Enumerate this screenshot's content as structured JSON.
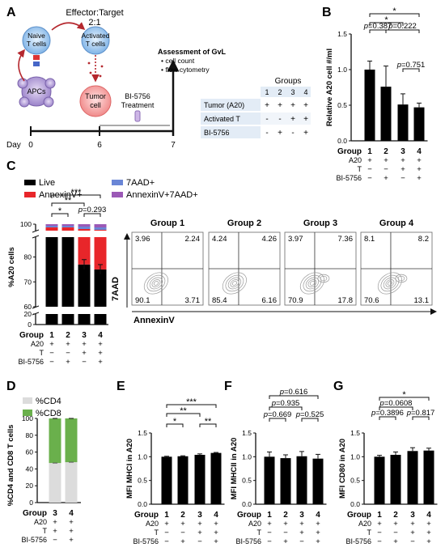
{
  "panel_labels": {
    "A": "A",
    "B": "B",
    "C": "C",
    "D": "D",
    "E": "E",
    "F": "F",
    "G": "G"
  },
  "panel_a": {
    "title": "Effector:Target",
    "ratio": "2:1",
    "naive": [
      "Naive",
      "T cells"
    ],
    "activated": [
      "Activated",
      "T cells"
    ],
    "apcs": "APCs",
    "tumor": [
      "Tumor",
      "cell"
    ],
    "treatment": [
      "BI-5756",
      "Treatment"
    ],
    "assess_title": "Assessment of GvL",
    "assess_items": [
      "• cell count",
      "• flow cytometry"
    ],
    "timeline_label": "Day",
    "timeline_ticks": [
      "0",
      "6",
      "7"
    ],
    "groups_table": {
      "header": "Groups",
      "columns": [
        "1",
        "2",
        "3",
        "4"
      ],
      "rows": [
        {
          "label": "Tumor (A20)",
          "cells": [
            "+",
            "+",
            "+",
            "+"
          ]
        },
        {
          "label": "Activated T",
          "cells": [
            "-",
            "-",
            "+",
            "+"
          ]
        },
        {
          "label": "BI-5756",
          "cells": [
            "-",
            "+",
            "-",
            "+"
          ]
        }
      ]
    }
  },
  "design_rows": {
    "group_label": "Group",
    "row_labels": [
      "A20",
      "T",
      "BI-5756"
    ],
    "groups4": [
      "1",
      "2",
      "3",
      "4"
    ],
    "A20": [
      "+",
      "+",
      "+",
      "+"
    ],
    "T": [
      "−",
      "−",
      "+",
      "+"
    ],
    "BI": [
      "−",
      "+",
      "−",
      "+"
    ],
    "groups2": [
      "3",
      "4"
    ],
    "A20_2": [
      "+",
      "+"
    ],
    "T_2": [
      "+",
      "+"
    ],
    "BI_2": [
      "−",
      "+"
    ]
  },
  "chart_data": [
    {
      "id": "B",
      "type": "bar",
      "ylabel": "Relative A20 cell #/ml",
      "categories": [
        "1",
        "2",
        "3",
        "4"
      ],
      "values": [
        1.0,
        0.76,
        0.51,
        0.47
      ],
      "errors": [
        0.12,
        0.29,
        0.15,
        0.06
      ],
      "ylim": [
        0,
        1.5
      ],
      "yticks": [
        "0.0",
        "0.5",
        "1.0",
        "1.5"
      ],
      "sig_labels": [
        "*",
        "*",
        "p=0.387",
        "p=0.222",
        "p=0.751"
      ]
    },
    {
      "id": "C",
      "type": "bar",
      "stacked": true,
      "ylabel": "%A20 cells",
      "categories": [
        "1",
        "2",
        "3",
        "4"
      ],
      "legend": [
        "Live",
        "AnnexinV+",
        "7AAD+",
        "AnnexinV+7AAD+"
      ],
      "colors": {
        "live": "#000000",
        "annexin": "#e8262a",
        "aad": "#6a86d6",
        "double": "#9b59b6"
      },
      "live": [
        96,
        96,
        77,
        75
      ],
      "annexin": [
        2,
        2,
        20,
        21.5
      ],
      "aad": [
        1,
        1,
        1.5,
        1.5
      ],
      "double": [
        1,
        1,
        1.5,
        2
      ],
      "broken_axis": true,
      "yticks": [
        "0",
        "20",
        "60",
        "70",
        "80",
        "100"
      ],
      "sig_labels": [
        "***",
        "**",
        "*",
        "p=0.293"
      ]
    },
    {
      "id": "C_flow",
      "type": "scatter",
      "xlabel": "AnnexinV",
      "ylabel": "7AAD",
      "panels": [
        {
          "title": "Group 1",
          "q": [
            "3.96",
            "2.24",
            "90.1",
            "3.71"
          ]
        },
        {
          "title": "Group 2",
          "q": [
            "4.24",
            "4.26",
            "85.4",
            "6.16"
          ]
        },
        {
          "title": "Group 3",
          "q": [
            "3.97",
            "7.36",
            "70.9",
            "17.8"
          ]
        },
        {
          "title": "Group 4",
          "q": [
            "8.1",
            "8.2",
            "70.6",
            "13.1"
          ]
        }
      ]
    },
    {
      "id": "D",
      "type": "bar",
      "stacked": true,
      "ylabel": "%CD4 and CD8 T cells",
      "legend": [
        "%CD4",
        "%CD8"
      ],
      "colors": {
        "cd4": "#dcdcdc",
        "cd8": "#6ab04c"
      },
      "categories": [
        "3",
        "4"
      ],
      "cd4": [
        47,
        48
      ],
      "cd8": [
        53,
        52
      ],
      "ylim": [
        0,
        100
      ],
      "yticks": [
        "0",
        "20",
        "40",
        "60",
        "80",
        "100"
      ]
    },
    {
      "id": "E",
      "type": "bar",
      "ylabel": "MFI MHCI in A20",
      "categories": [
        "1",
        "2",
        "3",
        "4"
      ],
      "values": [
        1.0,
        1.01,
        1.04,
        1.08
      ],
      "errors": [
        0.01,
        0.01,
        0.02,
        0.01
      ],
      "ylim": [
        0,
        1.5
      ],
      "yticks": [
        "0.0",
        "0.5",
        "1.0",
        "1.5"
      ],
      "sig_labels": [
        "***",
        "**",
        "*",
        "**"
      ]
    },
    {
      "id": "F",
      "type": "bar",
      "ylabel": "MFI MHCII in A20",
      "categories": [
        "1",
        "2",
        "3",
        "4"
      ],
      "values": [
        1.0,
        0.97,
        1.01,
        0.96
      ],
      "errors": [
        0.1,
        0.07,
        0.1,
        0.09
      ],
      "ylim": [
        0,
        1.5
      ],
      "yticks": [
        "0.0",
        "0.5",
        "1.0",
        "1.5"
      ],
      "sig_labels": [
        "p=0.616",
        "p=0.935",
        "p=0.669",
        "p=0.525"
      ]
    },
    {
      "id": "G",
      "type": "bar",
      "ylabel": "MFI CD80 in A20",
      "categories": [
        "1",
        "2",
        "3",
        "4"
      ],
      "values": [
        1.0,
        1.04,
        1.12,
        1.13
      ],
      "errors": [
        0.03,
        0.06,
        0.07,
        0.05
      ],
      "ylim": [
        0,
        1.5
      ],
      "yticks": [
        "0.0",
        "0.5",
        "1.0",
        "1.5"
      ],
      "sig_labels": [
        "*",
        "p=0.0608",
        "p=0.3896",
        "p=0.817"
      ]
    }
  ]
}
